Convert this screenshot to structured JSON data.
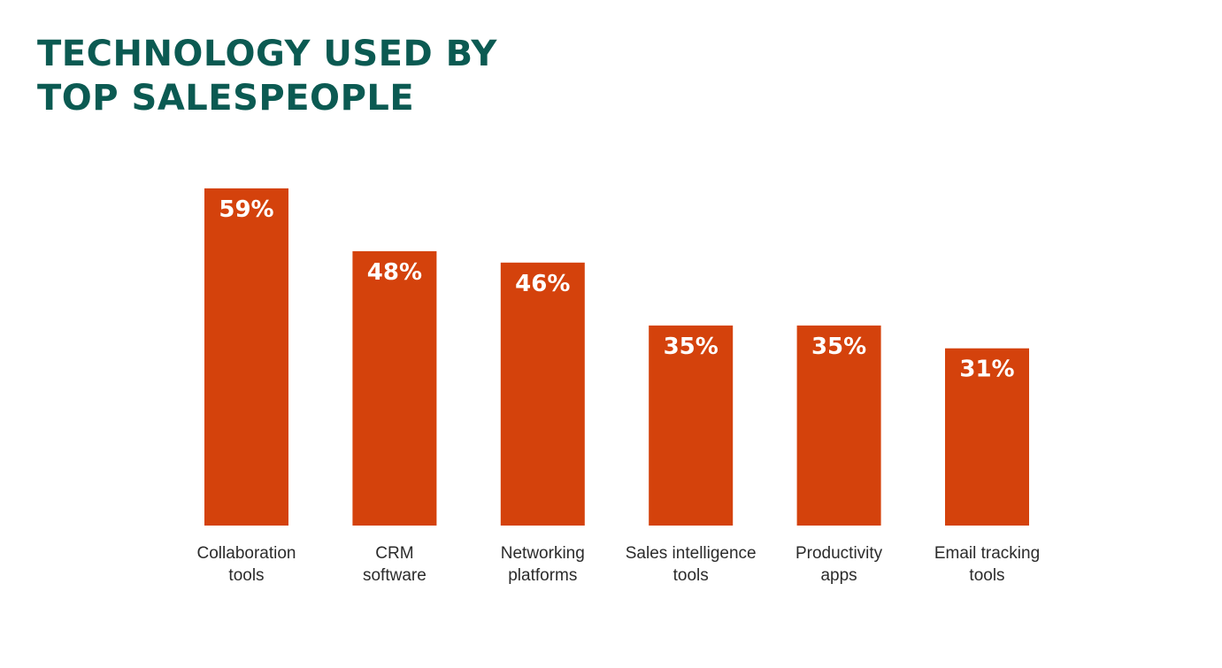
{
  "chart_data": {
    "type": "bar",
    "title_lines": [
      "TECHNOLOGY USED BY",
      "TOP SALESPEOPLE"
    ],
    "categories": [
      [
        "Collaboration",
        "tools"
      ],
      [
        "CRM",
        "software"
      ],
      [
        "Networking",
        "platforms"
      ],
      [
        "Sales intelligence",
        "tools"
      ],
      [
        "Productivity",
        "apps"
      ],
      [
        "Email tracking",
        "tools"
      ]
    ],
    "values": [
      59,
      48,
      46,
      35,
      35,
      31
    ],
    "value_labels": [
      "59%",
      "48%",
      "46%",
      "35%",
      "35%",
      "31%"
    ],
    "ylim": [
      0,
      100
    ],
    "grid": false,
    "legend": "none",
    "colors": {
      "bar": "#d4420c",
      "title": "#0b5a52",
      "value_label": "#ffffff",
      "category_label": "#2b2b2b"
    }
  }
}
